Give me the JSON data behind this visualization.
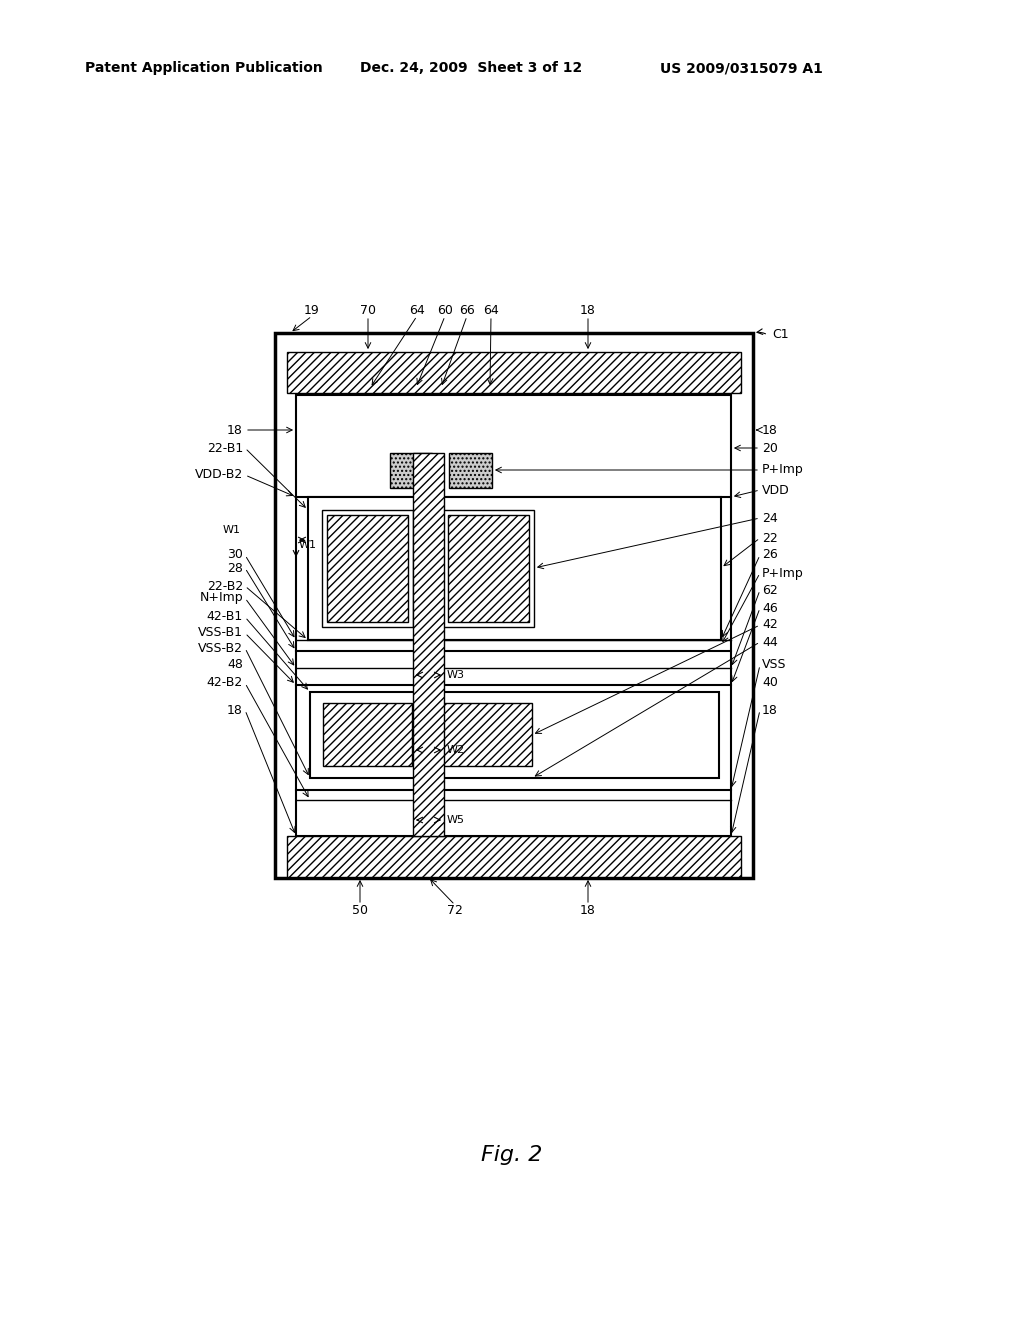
{
  "header_left": "Patent Application Publication",
  "header_mid": "Dec. 24, 2009  Sheet 3 of 12",
  "header_right": "US 2009/0315079 A1",
  "figure_label": "Fig. 2",
  "bg_color": "#ffffff"
}
